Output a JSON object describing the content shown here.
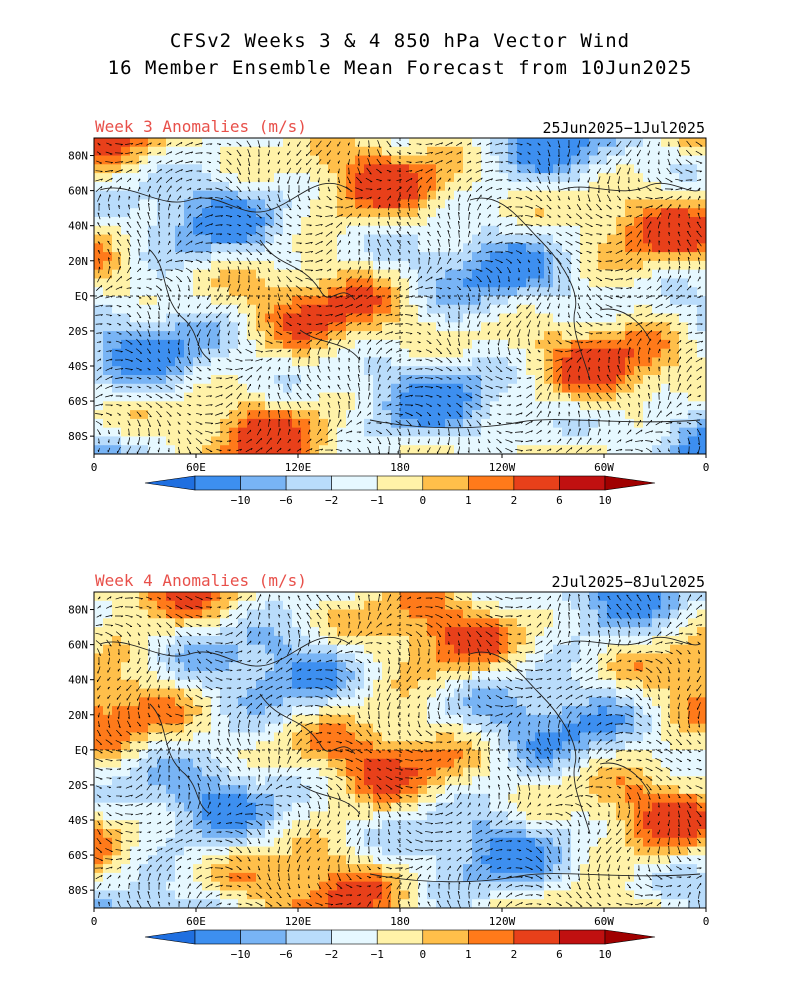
{
  "title": {
    "line1": "CFSv2 Weeks 3 & 4 850 hPa Vector Wind",
    "line2": "16 Member Ensemble Mean Forecast from 10Jun2025"
  },
  "panels": [
    {
      "label": "Week 3 Anomalies (m/s)",
      "dates": "25Jun2025−1Jul2025"
    },
    {
      "label": "Week 4 Anomalies (m/s)",
      "dates": "2Jul2025−8Jul2025"
    }
  ],
  "axes": {
    "lat_labels": [
      "80N",
      "60N",
      "40N",
      "20N",
      "EQ",
      "20S",
      "40S",
      "60S",
      "80S"
    ],
    "lon_labels": [
      "0",
      "60E",
      "120E",
      "180",
      "120W",
      "60W",
      "0"
    ]
  },
  "colorbar": {
    "labels": [
      "−10",
      "−6",
      "−2",
      "−1",
      "0",
      "1",
      "2",
      "6",
      "10"
    ],
    "colors": [
      "#1f6fe0",
      "#3d8ff0",
      "#78b4f5",
      "#b9dcfb",
      "#e6f8ff",
      "#fff2a8",
      "#ffbf4a",
      "#ff7a1a",
      "#e8401a",
      "#c01010",
      "#a00000"
    ]
  }
}
